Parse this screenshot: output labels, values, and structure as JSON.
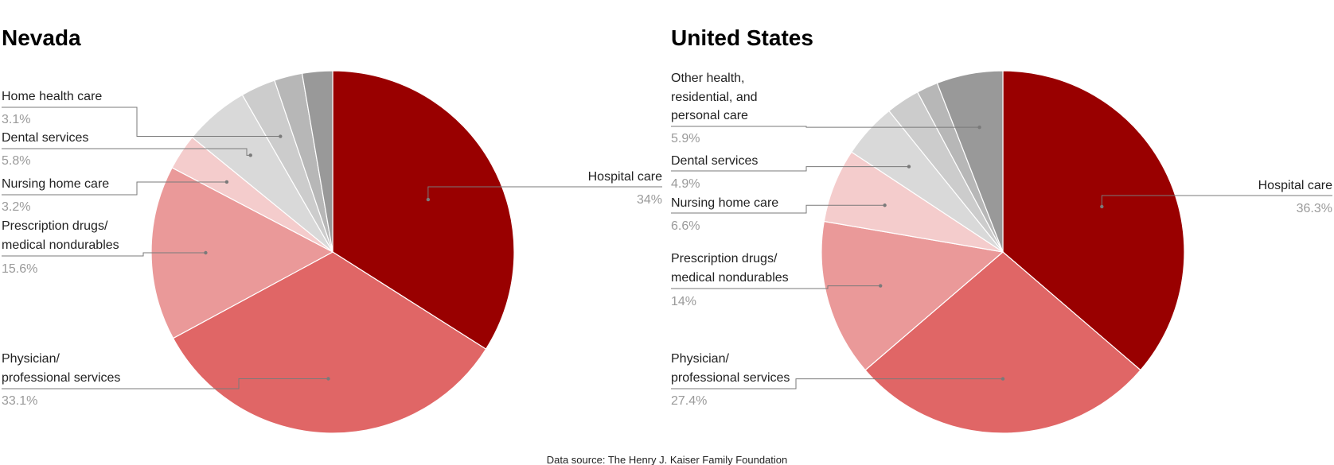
{
  "chart_data": [
    {
      "type": "pie",
      "title": "Nevada",
      "slices": [
        {
          "label": "Hospital care",
          "value": 34.0,
          "display": "34%",
          "color": "#990000"
        },
        {
          "label": "Physician/ professional services",
          "value": 33.1,
          "display": "33.1%",
          "color": "#e06666"
        },
        {
          "label": "Prescription drugs/ medical nondurables",
          "value": 15.6,
          "display": "15.6%",
          "color": "#ea9999"
        },
        {
          "label": "Nursing home care",
          "value": 3.2,
          "display": "3.2%",
          "color": "#f4cccc"
        },
        {
          "label": "Dental services",
          "value": 5.8,
          "display": "5.8%",
          "color": "#d9d9d9"
        },
        {
          "label": "Home health care",
          "value": 3.1,
          "display": "3.1%",
          "color": "#cccccc"
        },
        {
          "label": "",
          "value": 2.5,
          "display": "",
          "color": "#b7b7b7"
        },
        {
          "label": "",
          "value": 2.7,
          "display": "",
          "color": "#999999"
        }
      ]
    },
    {
      "type": "pie",
      "title": "United States",
      "slices": [
        {
          "label": "Hospital care",
          "value": 36.3,
          "display": "36.3%",
          "color": "#990000"
        },
        {
          "label": "Physician/ professional services",
          "value": 27.4,
          "display": "27.4%",
          "color": "#e06666"
        },
        {
          "label": "Prescription drugs/ medical nondurables",
          "value": 14.0,
          "display": "14%",
          "color": "#ea9999"
        },
        {
          "label": "Nursing home care",
          "value": 6.6,
          "display": "6.6%",
          "color": "#f4cccc"
        },
        {
          "label": "Dental services",
          "value": 4.9,
          "display": "4.9%",
          "color": "#d9d9d9"
        },
        {
          "label": "",
          "value": 3.0,
          "display": "",
          "color": "#cccccc"
        },
        {
          "label": "",
          "value": 1.9,
          "display": "",
          "color": "#b7b7b7"
        },
        {
          "label": "Other health, residential, and personal care",
          "value": 5.9,
          "display": "5.9%",
          "color": "#999999"
        }
      ]
    }
  ],
  "source": "Data source: The Henry J. Kaiser Family Foundation"
}
